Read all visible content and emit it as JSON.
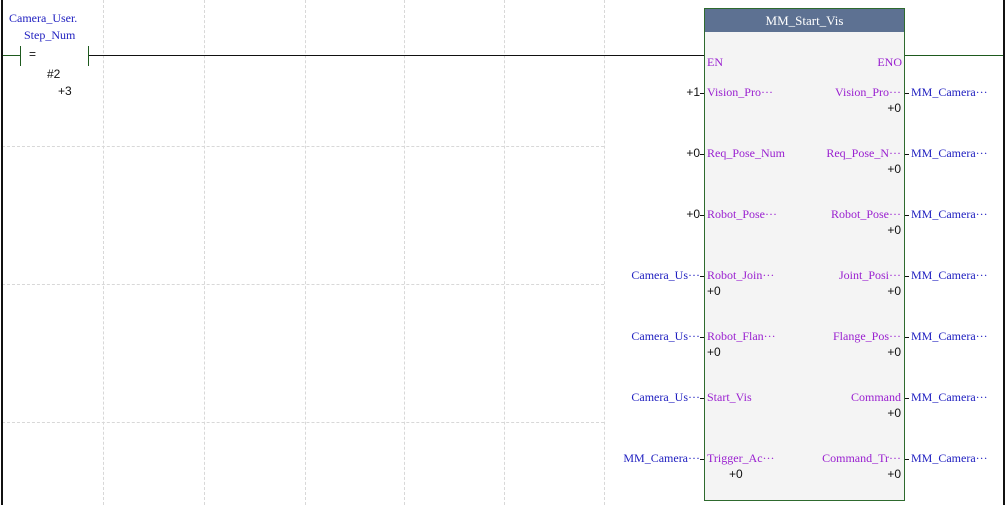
{
  "contact": {
    "operand_line1": "Camera_User.",
    "operand_line2": "Step_Num",
    "op": "=",
    "compare": "#2",
    "value": "+3"
  },
  "block": {
    "title": "MM_Start_Vis",
    "en": "EN",
    "eno": "ENO",
    "rows": [
      {
        "in_actual": "+1",
        "in_pin": "Vision_Pro···",
        "in_value": "",
        "out_pin": "Vision_Pro···",
        "out_value": "+0",
        "out_actual": "MM_Camera···"
      },
      {
        "in_actual": "+0",
        "in_pin": "Req_Pose_Num",
        "in_value": "",
        "out_pin": "Req_Pose_N···",
        "out_value": "+0",
        "out_actual": "MM_Camera···"
      },
      {
        "in_actual": "+0",
        "in_pin": "Robot_Pose···",
        "in_value": "",
        "out_pin": "Robot_Pose···",
        "out_value": "+0",
        "out_actual": "MM_Camera···"
      },
      {
        "in_actual": "Camera_Us···",
        "in_pin": "Robot_Join···",
        "in_value": "+0",
        "out_pin": "Joint_Posi···",
        "out_value": "+0",
        "out_actual": "MM_Camera···"
      },
      {
        "in_actual": "Camera_Us···",
        "in_pin": "Robot_Flan···",
        "in_value": "+0",
        "out_pin": "Flange_Pos···",
        "out_value": "+0",
        "out_actual": "MM_Camera···"
      },
      {
        "in_actual": "Camera_Us···",
        "in_pin": "Start_Vis",
        "in_value": "",
        "out_pin": "Command",
        "out_value": "+0",
        "out_actual": "MM_Camera···"
      },
      {
        "in_actual": "MM_Camera···",
        "in_pin": "Trigger_Ac···",
        "in_value": "+0",
        "out_pin": "Command_Tr···",
        "out_value": "+0",
        "out_actual": "MM_Camera···"
      }
    ]
  }
}
